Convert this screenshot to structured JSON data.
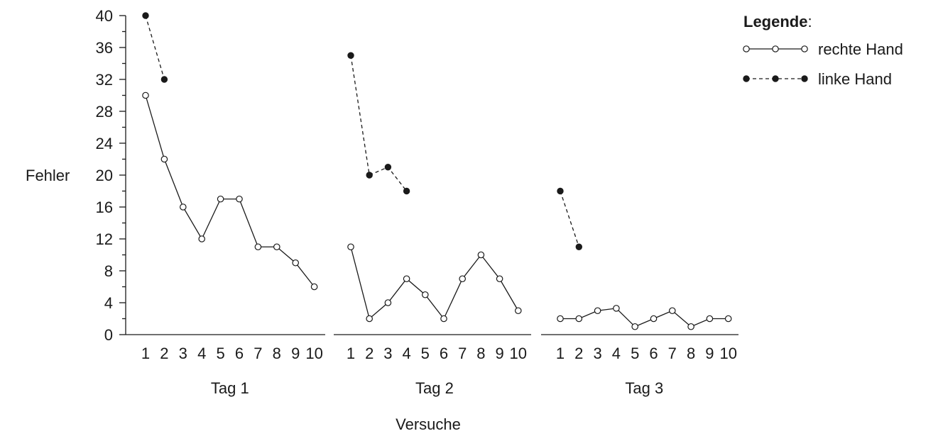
{
  "chart_data": {
    "type": "line",
    "ylabel": "Fehler",
    "xlabel": "Versuche",
    "ylim": [
      0,
      40
    ],
    "yticks": [
      0,
      4,
      8,
      12,
      16,
      20,
      24,
      28,
      32,
      36,
      40
    ],
    "grid": false,
    "legend": {
      "title": "Legende",
      "title_suffix": ":",
      "placement": "top-right",
      "entries": [
        {
          "label": "rechte Hand",
          "style": "solid-open"
        },
        {
          "label": "linke Hand",
          "style": "dashed-filled"
        }
      ]
    },
    "panels": [
      {
        "label": "Tag 1",
        "x": [
          1,
          2,
          3,
          4,
          5,
          6,
          7,
          8,
          9,
          10
        ],
        "series": [
          {
            "name": "rechte Hand",
            "x": [
              1,
              2,
              3,
              4,
              5,
              6,
              7,
              8,
              9,
              10
            ],
            "values": [
              30,
              22,
              16,
              12,
              17,
              17,
              11,
              11,
              9,
              6
            ]
          },
          {
            "name": "linke Hand",
            "x": [
              1,
              2
            ],
            "values": [
              40,
              32
            ]
          }
        ]
      },
      {
        "label": "Tag 2",
        "x": [
          1,
          2,
          3,
          4,
          5,
          6,
          7,
          8,
          9,
          10
        ],
        "series": [
          {
            "name": "rechte Hand",
            "x": [
              1,
              2,
              3,
              4,
              5,
              6,
              7,
              8,
              9,
              10
            ],
            "values": [
              11,
              2,
              4,
              7,
              5,
              2,
              7,
              10,
              7,
              3
            ]
          },
          {
            "name": "linke Hand",
            "x": [
              1,
              2,
              3,
              4
            ],
            "values": [
              35,
              20,
              21,
              18
            ]
          }
        ]
      },
      {
        "label": "Tag 3",
        "x": [
          1,
          2,
          3,
          4,
          5,
          6,
          7,
          8,
          9,
          10
        ],
        "series": [
          {
            "name": "rechte Hand",
            "x": [
              1,
              2,
              3,
              4,
              5,
              6,
              7,
              8,
              9,
              10
            ],
            "values": [
              2,
              2,
              3,
              3.3,
              1,
              2,
              3,
              1,
              2,
              2
            ]
          },
          {
            "name": "linke Hand",
            "x": [
              1,
              2
            ],
            "values": [
              18,
              11
            ]
          }
        ]
      }
    ]
  }
}
